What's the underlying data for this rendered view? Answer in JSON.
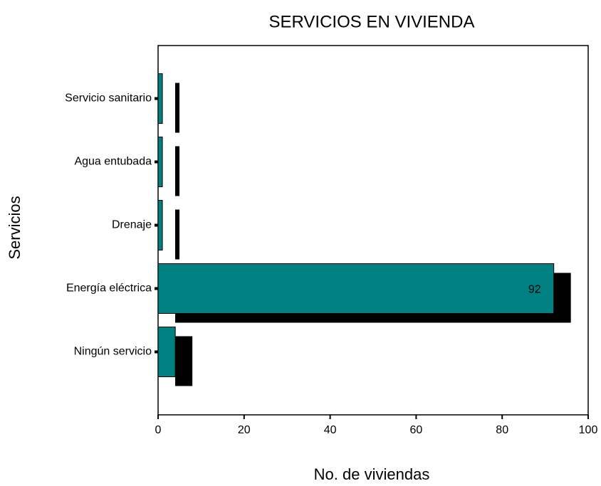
{
  "chart_data": {
    "type": "barh",
    "title": "SERVICIOS EN VIVIENDA",
    "xlabel": "No. de viviendas",
    "ylabel": "Servicios",
    "categories": [
      "Servicio sanitario",
      "Agua entubada",
      "Drenaje",
      "Energía eléctrica",
      "Ningún servicio"
    ],
    "values": [
      1,
      1,
      1,
      92,
      4
    ],
    "value_labels": [
      null,
      null,
      null,
      "92",
      null
    ],
    "color": "#008080",
    "shadow_color": "#000000",
    "xlim": [
      0,
      100
    ],
    "xticks": [
      0,
      20,
      40,
      60,
      80,
      100
    ]
  }
}
